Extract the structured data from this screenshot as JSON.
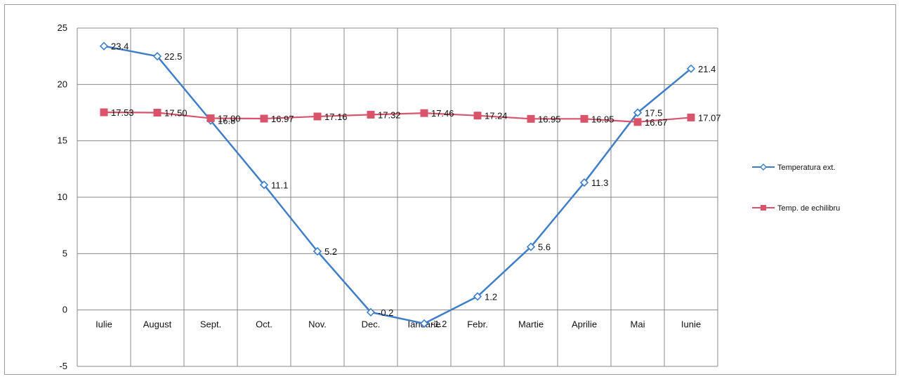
{
  "chart_data": {
    "type": "line",
    "title": "",
    "xlabel": "",
    "ylabel": "",
    "categories": [
      "Iulie",
      "August",
      "Sept.",
      "Oct.",
      "Nov.",
      "Dec.",
      "Ianuarie",
      "Febr.",
      "Martie",
      "Aprilie",
      "Mai",
      "Iunie"
    ],
    "ylim": [
      -5,
      25
    ],
    "yticks": [
      "25",
      "20",
      "15",
      "10",
      "5",
      "0",
      "-5"
    ],
    "grid": true,
    "legend_position": "right",
    "series": [
      {
        "name": "Temperatura ext.",
        "color": "#3e7ec9",
        "marker": "diamond",
        "values": [
          23.4,
          22.5,
          16.8,
          11.1,
          5.2,
          -0.2,
          -1.2,
          1.2,
          5.6,
          11.3,
          17.5,
          21.4
        ],
        "labels": [
          "23.4",
          "22.5",
          "16.8",
          "11.1",
          "5.2",
          "-0.2",
          "-1.2",
          "1.2",
          "5.6",
          "11.3",
          "17.5",
          "21.4"
        ]
      },
      {
        "name": "Temp. de echilibru",
        "color": "#d9546a",
        "marker": "square",
        "values": [
          17.53,
          17.5,
          17.0,
          16.97,
          17.16,
          17.32,
          17.46,
          17.24,
          16.95,
          16.95,
          16.67,
          17.07
        ],
        "labels": [
          "17.53",
          "17.50",
          "17.00",
          "16.97",
          "17.16",
          "17.32",
          "17.46",
          "17.24",
          "16.95",
          "16.95",
          "16.67",
          "17.07"
        ]
      }
    ]
  }
}
